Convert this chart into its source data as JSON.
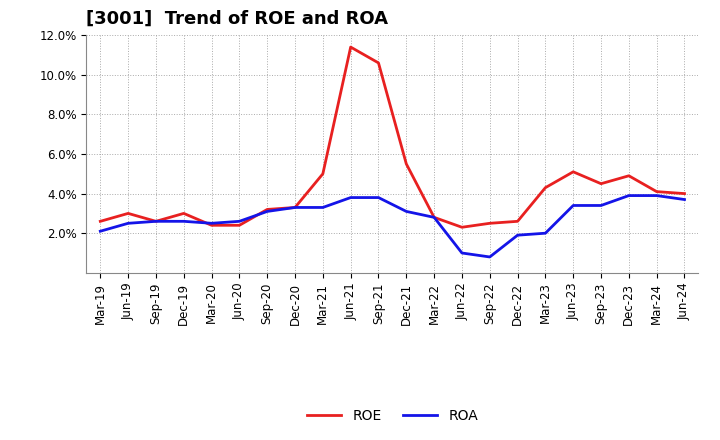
{
  "title": "[3001]  Trend of ROE and ROA",
  "labels": [
    "Mar-19",
    "Jun-19",
    "Sep-19",
    "Dec-19",
    "Mar-20",
    "Jun-20",
    "Sep-20",
    "Dec-20",
    "Mar-21",
    "Jun-21",
    "Sep-21",
    "Dec-21",
    "Mar-22",
    "Jun-22",
    "Sep-22",
    "Dec-22",
    "Mar-23",
    "Jun-23",
    "Sep-23",
    "Dec-23",
    "Mar-24",
    "Jun-24"
  ],
  "ROE": [
    2.6,
    3.0,
    2.6,
    3.0,
    2.4,
    2.4,
    3.2,
    3.3,
    5.0,
    11.4,
    10.6,
    5.5,
    2.8,
    2.3,
    2.5,
    2.6,
    4.3,
    5.1,
    4.5,
    4.9,
    4.1,
    4.0
  ],
  "ROA": [
    2.1,
    2.5,
    2.6,
    2.6,
    2.5,
    2.6,
    3.1,
    3.3,
    3.3,
    3.8,
    3.8,
    3.1,
    2.8,
    1.0,
    0.8,
    1.9,
    2.0,
    3.4,
    3.4,
    3.9,
    3.9,
    3.7
  ],
  "ROE_color": "#e82020",
  "ROA_color": "#1414e8",
  "ylim": [
    0,
    12.0
  ],
  "yticks": [
    2.0,
    4.0,
    6.0,
    8.0,
    10.0,
    12.0
  ],
  "background_color": "#ffffff",
  "grid_color": "#aaaaaa",
  "title_fontsize": 13,
  "legend_fontsize": 10,
  "tick_fontsize": 8.5
}
